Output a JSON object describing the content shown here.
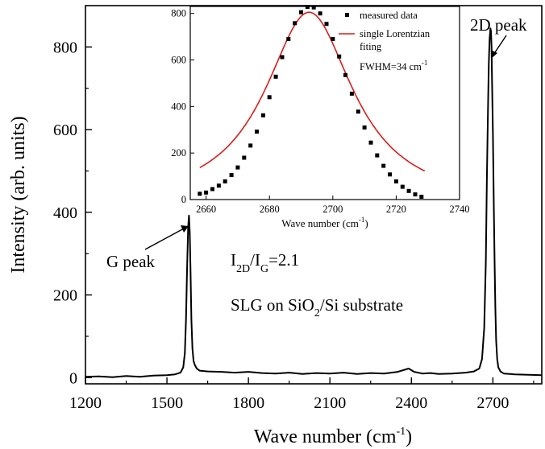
{
  "chart_data": [
    {
      "type": "line",
      "xlabel": "Wave number (cm",
      "xlabel_sup": "-1",
      "xlabel_end": ")",
      "ylabel": "Intensity (arb. units)",
      "xlim": [
        1200,
        2880
      ],
      "ylim": [
        -15,
        900
      ],
      "xticks": [
        1200,
        1500,
        1800,
        2100,
        2400,
        2700
      ],
      "yticks": [
        0,
        200,
        400,
        600,
        800
      ],
      "xtick_labels": [
        "1200",
        "1500",
        "1800",
        "2100",
        "2400",
        "2700"
      ],
      "ytick_labels": [
        "0",
        "200",
        "400",
        "600",
        "800"
      ],
      "series": [
        {
          "color": "#000000",
          "x": [
            1200,
            1250,
            1300,
            1350,
            1400,
            1450,
            1500,
            1530,
            1550,
            1560,
            1566,
            1570,
            1574,
            1578,
            1581,
            1584,
            1587,
            1590,
            1594,
            1598,
            1603,
            1610,
            1620,
            1650,
            1700,
            1750,
            1800,
            1850,
            1900,
            1950,
            2000,
            2050,
            2100,
            2150,
            2200,
            2250,
            2300,
            2350,
            2390,
            2410,
            2440,
            2470,
            2500,
            2550,
            2600,
            2630,
            2650,
            2660,
            2668,
            2674,
            2678,
            2682,
            2685,
            2688,
            2691,
            2693,
            2695,
            2697,
            2700,
            2703,
            2706,
            2709,
            2712,
            2716,
            2720,
            2728,
            2740,
            2780,
            2830,
            2880
          ],
          "values": [
            2,
            3,
            1,
            4,
            2,
            5,
            6,
            8,
            12,
            25,
            60,
            140,
            260,
            365,
            392,
            350,
            250,
            140,
            70,
            40,
            30,
            22,
            17,
            15,
            14,
            12,
            14,
            11,
            10,
            12,
            9,
            11,
            10,
            12,
            9,
            11,
            10,
            14,
            22,
            14,
            10,
            11,
            9,
            10,
            12,
            15,
            22,
            45,
            120,
            280,
            480,
            650,
            760,
            820,
            845,
            838,
            800,
            720,
            590,
            430,
            290,
            170,
            90,
            45,
            25,
            15,
            10,
            8,
            7,
            6
          ]
        }
      ],
      "annotations": [
        {
          "text": "2D peak",
          "x": 2700,
          "y": 840
        },
        {
          "text": "G peak",
          "x": 1585,
          "y": 390
        }
      ],
      "ratio_label": {
        "main": "I",
        "sub_top": "2D",
        "middle": "/I",
        "sub_bottom": "G",
        "end": "=2.1"
      },
      "sample_label": {
        "start": "SLG on SiO",
        "sub": "2",
        "end": "/Si substrate"
      }
    },
    {
      "type": "scatter",
      "xlabel": "Wave number (cm",
      "xlabel_sup": "-1",
      "xlabel_end": ")",
      "ylabel": "",
      "xlim": [
        2655,
        2740
      ],
      "ylim": [
        0,
        830
      ],
      "xticks": [
        2660,
        2680,
        2700,
        2720,
        2740
      ],
      "yticks": [
        0,
        200,
        400,
        600,
        800
      ],
      "xtick_labels": [
        "2660",
        "2680",
        "2700",
        "2720",
        "2740"
      ],
      "ytick_labels": [
        "0",
        "200",
        "400",
        "600",
        "800"
      ],
      "fit": {
        "type": "lorentzian",
        "center": 2692.5,
        "fwhm": 34,
        "amplitude": 830,
        "color": "#dd1c1c"
      },
      "measured": {
        "color": "#000000",
        "x": [
          2658,
          2660,
          2662,
          2664,
          2666,
          2668,
          2670,
          2672,
          2674,
          2676,
          2678,
          2680,
          2682,
          2684,
          2686,
          2688,
          2690,
          2692,
          2694,
          2696,
          2698,
          2700,
          2702,
          2704,
          2706,
          2708,
          2710,
          2712,
          2714,
          2716,
          2718,
          2720,
          2722,
          2724,
          2726,
          2728
        ],
        "y": [
          25,
          30,
          45,
          60,
          78,
          105,
          138,
          180,
          232,
          292,
          362,
          440,
          528,
          612,
          690,
          758,
          805,
          828,
          826,
          800,
          755,
          690,
          615,
          535,
          455,
          378,
          310,
          245,
          190,
          145,
          108,
          78,
          55,
          37,
          22,
          12
        ]
      },
      "legend": [
        {
          "label": "measured data"
        },
        {
          "label": "single Lorentzian",
          "label2": "fiting"
        }
      ],
      "fwhm_label": {
        "text": "FWHM=34 cm",
        "sup": "-1"
      }
    }
  ]
}
